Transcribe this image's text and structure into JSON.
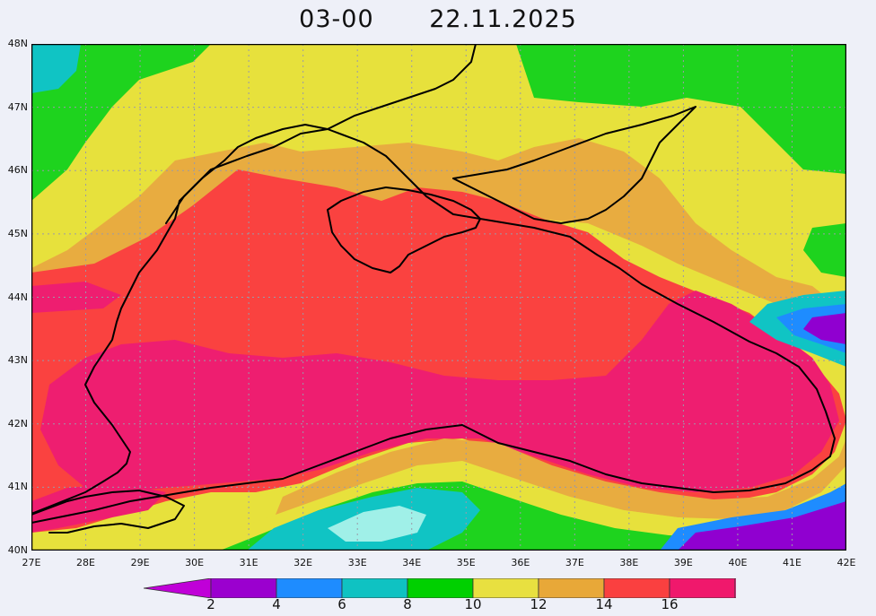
{
  "header": {
    "time": "03-00",
    "date": "22.11.2025"
  },
  "map": {
    "lon_labels": [
      "27E",
      "28E",
      "29E",
      "30E",
      "31E",
      "32E",
      "33E",
      "34E",
      "35E",
      "36E",
      "37E",
      "38E",
      "39E",
      "40E",
      "41E",
      "42E"
    ],
    "lat_labels": [
      "48N",
      "47N",
      "46N",
      "45N",
      "44N",
      "43N",
      "42N",
      "41N",
      "40N"
    ]
  },
  "colorbar": {
    "ticks": [
      "2",
      "4",
      "6",
      "8",
      "10",
      "12",
      "14",
      "16"
    ],
    "colors": [
      "#9b00cf",
      "#1e8cff",
      "#0fc2c2",
      "#00d000",
      "#e8e040",
      "#e8a838",
      "#fa4040",
      "#f0186c"
    ],
    "arrow_left_color": "#c000d8",
    "arrow_right_color": "#ff40a0"
  },
  "palette": {
    "green": "#1ed31e",
    "yellow": "#e7e13c",
    "orange": "#e8ac40",
    "red": "#fa4240",
    "pink": "#ee1e70",
    "cyan": "#10c4c4",
    "blue": "#1e8cff",
    "purple": "#9000d0",
    "light": "#a0f0e8"
  }
}
